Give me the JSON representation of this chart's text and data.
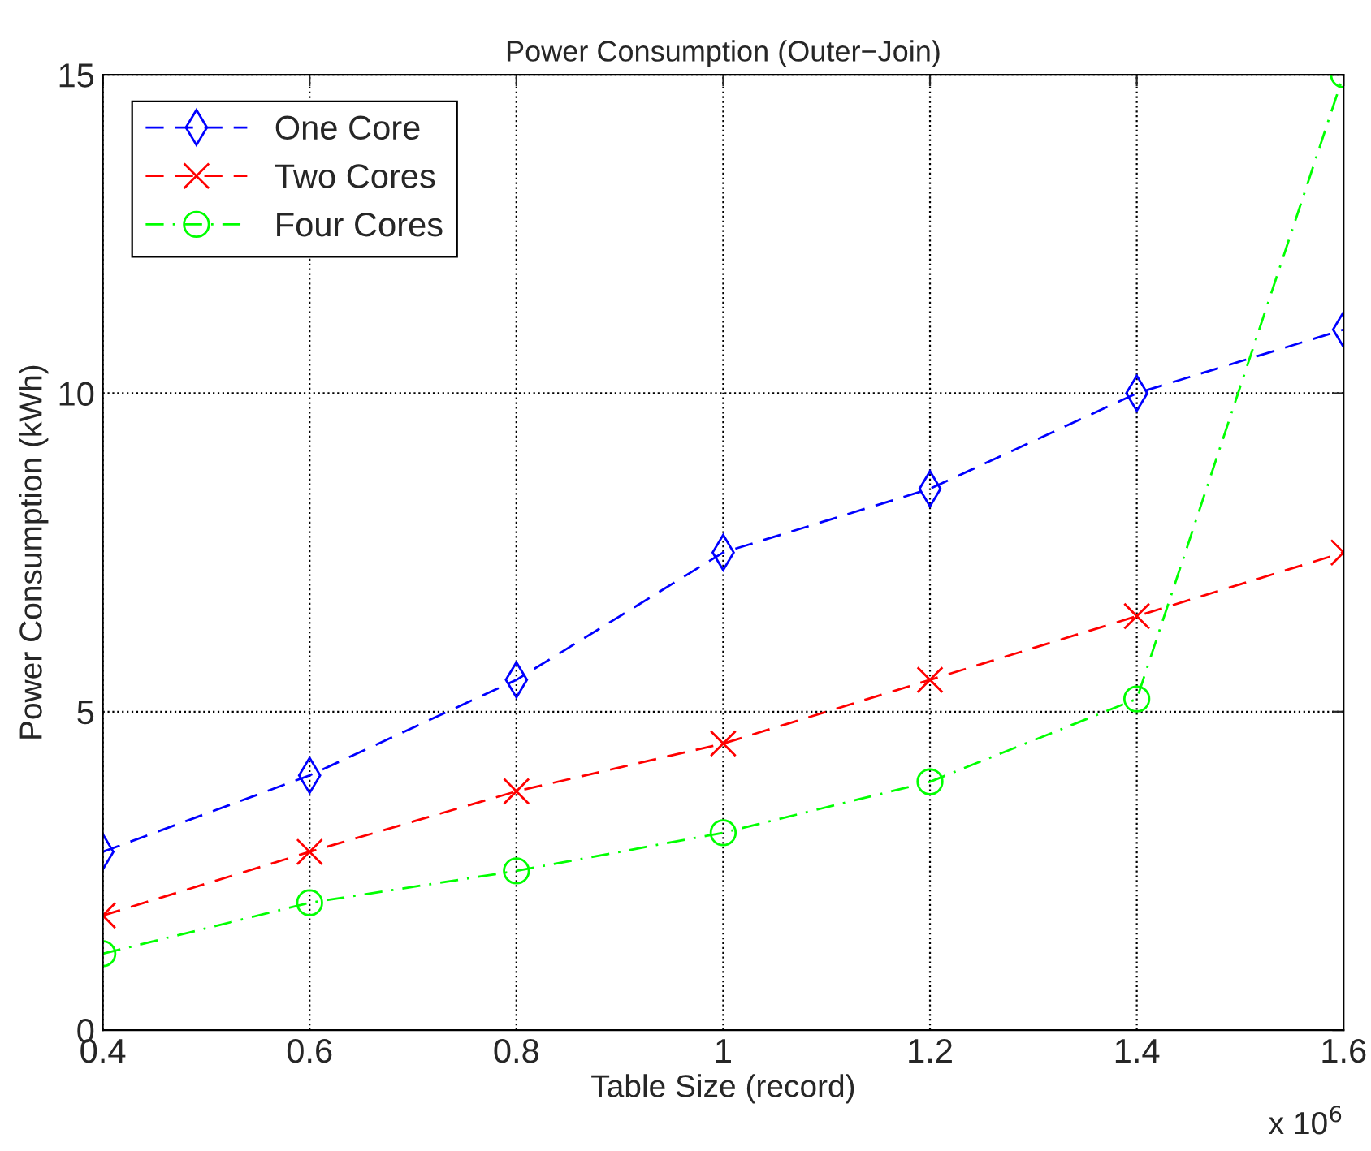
{
  "chart_data": {
    "type": "line",
    "title": "Power Consumption (Outer−Join)",
    "xlabel": "Table Size (record)",
    "ylabel": "Power Consumption (kWh)",
    "x": [
      0.4,
      0.6,
      0.8,
      1.0,
      1.2,
      1.4,
      1.6
    ],
    "series": [
      {
        "name": "One Core",
        "color": "#0000ff",
        "marker": "diamond",
        "line_style": "dashed",
        "values": [
          2.8,
          4.0,
          5.5,
          7.5,
          8.5,
          10,
          11
        ]
      },
      {
        "name": "Two Cores",
        "color": "#ff0000",
        "marker": "cross",
        "line_style": "dashed",
        "values": [
          1.8,
          2.8,
          3.75,
          4.5,
          5.5,
          6.5,
          7.5
        ]
      },
      {
        "name": "Four Cores",
        "color": "#00ff00",
        "marker": "circle",
        "line_style": "dashdot",
        "values": [
          1.2,
          2.0,
          2.5,
          3.1,
          3.9,
          5.2,
          15
        ]
      }
    ],
    "xlim": [
      0.4,
      1.6
    ],
    "xticks": [
      0.4,
      0.6,
      0.8,
      1,
      1.2,
      1.4,
      1.6
    ],
    "ylim": [
      0,
      15
    ],
    "yticks": [
      0,
      5,
      10,
      15
    ],
    "grid": true,
    "legend": "top left",
    "annotations": [
      "x 10$^{6}$"
    ]
  }
}
